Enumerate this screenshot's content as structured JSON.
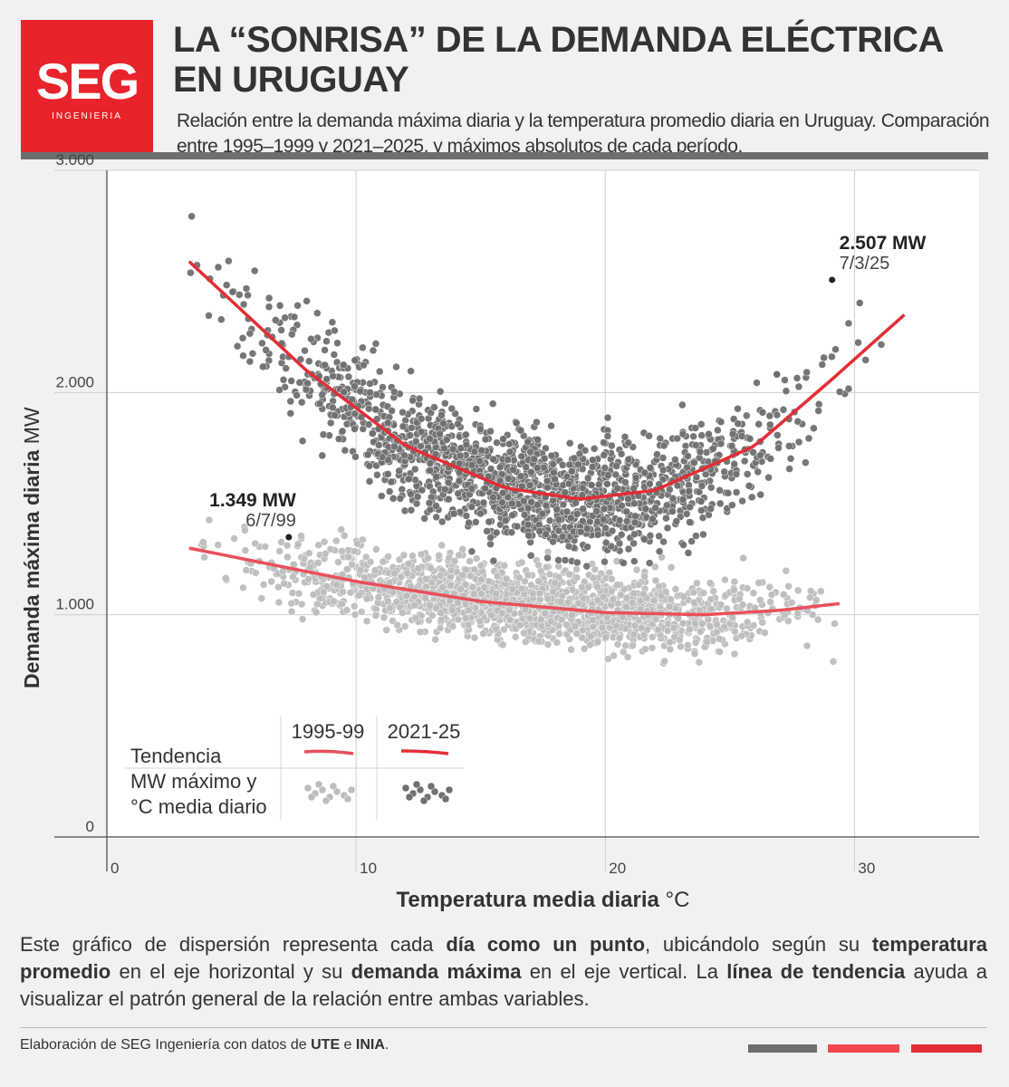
{
  "brand": {
    "logo_text": "SEG",
    "logo_subtext": "INGENIERIA",
    "colors": {
      "red": "#e8232b",
      "gray": "#6d6e70",
      "light_red": "#f0474d"
    }
  },
  "header": {
    "title": "LA “SONRISA” DE LA DEMANDA ELÉCTRICA EN URUGUAY",
    "subtitle": "Relación entre la demanda máxima diaria y la temperatura promedio diaria en Uruguay. Comparación entre 1995–1999 y 2021–2025, y máximos absolutos de cada período."
  },
  "chart_data": {
    "type": "scatter",
    "xlabel_bold": "Temperatura media diaria",
    "xlabel_unit": "°C",
    "ylabel_bold": "Demanda máxima diaria",
    "ylabel_unit": "MW",
    "xlim": [
      0,
      35
    ],
    "ylim": [
      0,
      3000
    ],
    "x_ticks": [
      "0",
      "10",
      "20",
      "30"
    ],
    "y_ticks": [
      "0",
      "1.000",
      "2.000",
      "3.000"
    ],
    "grid": true,
    "series": [
      {
        "name": "1995-99",
        "point_color": "#bdbdbd",
        "trend_color": "#e8505a",
        "temp_range": [
          3.3,
          29.4
        ],
        "trend": [
          {
            "x": 3.3,
            "y": 1300
          },
          {
            "x": 10,
            "y": 1150
          },
          {
            "x": 15,
            "y": 1060
          },
          {
            "x": 20,
            "y": 1010
          },
          {
            "x": 24,
            "y": 1000
          },
          {
            "x": 27,
            "y": 1020
          },
          {
            "x": 29.4,
            "y": 1050
          }
        ],
        "max": {
          "value_label": "1.349 MW",
          "date_label": "6/7/99",
          "x": 7.3,
          "y": 1349
        }
      },
      {
        "name": "2021-25",
        "point_color": "#6f6f6f",
        "trend_color": "#e32d35",
        "temp_range": [
          3.3,
          32.0
        ],
        "trend": [
          {
            "x": 3.3,
            "y": 2590
          },
          {
            "x": 8,
            "y": 2100
          },
          {
            "x": 12,
            "y": 1760
          },
          {
            "x": 16,
            "y": 1570
          },
          {
            "x": 19,
            "y": 1520
          },
          {
            "x": 22,
            "y": 1560
          },
          {
            "x": 26,
            "y": 1760
          },
          {
            "x": 29,
            "y": 2050
          },
          {
            "x": 32,
            "y": 2350
          }
        ],
        "max": {
          "value_label": "2.507 MW",
          "date_label": "7/3/25",
          "x": 29.1,
          "y": 2507
        }
      }
    ],
    "legend": {
      "row_trend": "Tendencia",
      "row_points_line1": "MW máximo y",
      "row_points_line2": "°C media diario",
      "col1": "1995-99",
      "col2": "2021-25",
      "placement": "bottom-left"
    }
  },
  "description": {
    "p1": "Este gráfico de dispersión representa cada ",
    "b1": "día como un punto",
    "p2": ", ubicándolo según su ",
    "b2": "temperatura promedio",
    "p3": " en el eje horizontal y su ",
    "b3": "demanda máxima",
    "p4": " en el eje vertical. La ",
    "b4": "línea de tendencia",
    "p5": " ayuda a visualizar el patrón general de la relación entre ambas variables."
  },
  "footer": {
    "source_prefix": "Elaboración de SEG Ingeniería con datos de ",
    "source_org1": "UTE",
    "source_mid": " e ",
    "source_org2": "INIA",
    "source_suffix": "."
  }
}
